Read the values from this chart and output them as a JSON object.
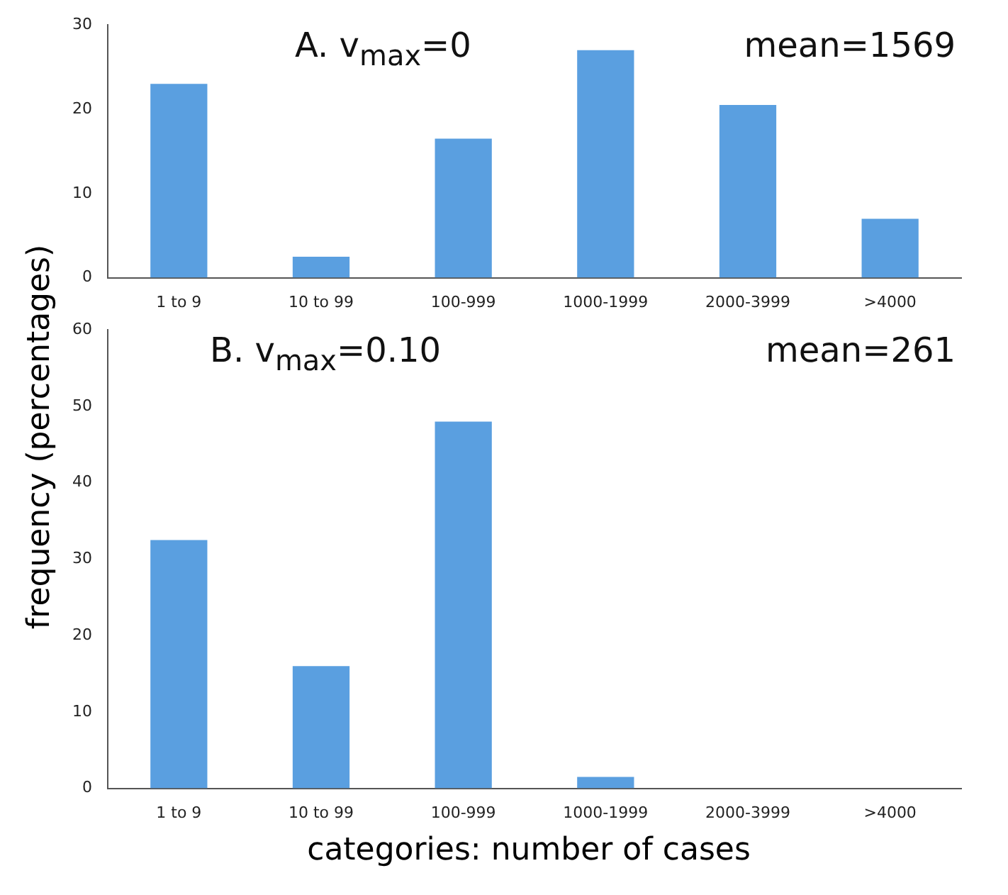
{
  "chart_data": [
    {
      "type": "bar",
      "ylabel": "frequency (percentages)",
      "annotations": [
        "A. v$_{max}$=0",
        "mean=1569"
      ],
      "categories": [
        "1 to 9",
        "10 to 99",
        "100-999",
        "1000-1999",
        "2000-3999",
        ">4000"
      ],
      "values": [
        23,
        2.5,
        16.5,
        27,
        20.5,
        7
      ],
      "color": "#5a9fe0",
      "ylim": [
        0,
        30
      ],
      "yticks": [
        0,
        10,
        20,
        30
      ],
      "grid": false
    },
    {
      "type": "bar",
      "xlabel": "categories: number of cases",
      "annotations": [
        "B. v$_{max}$=0.10",
        "mean=261"
      ],
      "categories": [
        "1 to 9",
        "10 to 99",
        "100-999",
        "1000-1999",
        "2000-3999",
        ">4000"
      ],
      "values": [
        32.5,
        16,
        48,
        1.5,
        0,
        0
      ],
      "color": "#5a9fe0",
      "ylim": [
        0,
        60
      ],
      "yticks": [
        0,
        10,
        20,
        30,
        40,
        50,
        60
      ],
      "grid": false
    }
  ]
}
